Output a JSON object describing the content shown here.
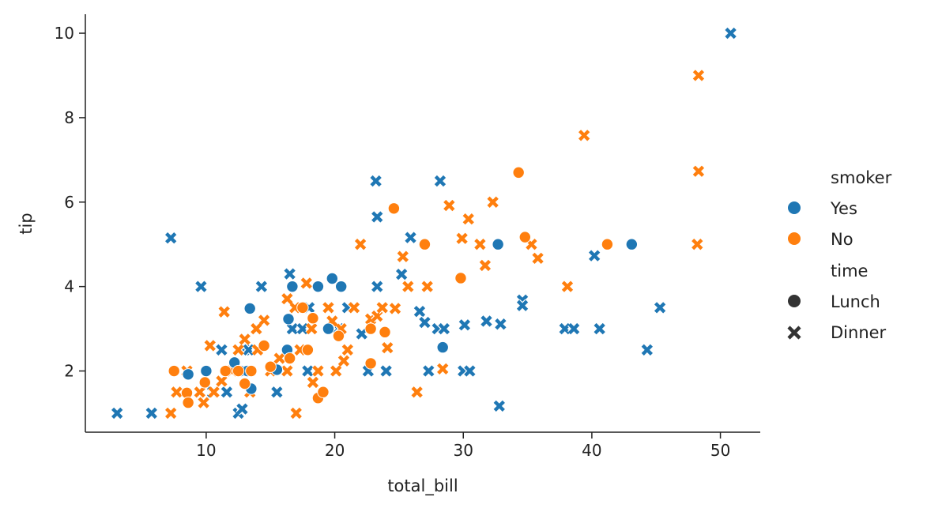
{
  "chart_data": {
    "type": "scatter",
    "title": "",
    "xlabel": "total_bill",
    "ylabel": "tip",
    "xlim": [
      0.6,
      53.1
    ],
    "ylim": [
      0.55,
      10.45
    ],
    "xticks": [
      10,
      20,
      30,
      40,
      50
    ],
    "yticks": [
      2,
      4,
      6,
      8,
      10
    ],
    "grid": false,
    "legend": {
      "placement": "right",
      "hue_title": "smoker",
      "hue_entries": [
        {
          "label": "Yes",
          "color": "#1f77b4"
        },
        {
          "label": "No",
          "color": "#ff7f0e"
        }
      ],
      "style_title": "time",
      "style_entries": [
        {
          "label": "Lunch",
          "marker": "circle"
        },
        {
          "label": "Dinner",
          "marker": "x"
        }
      ]
    },
    "series": [
      {
        "smoker": "Yes",
        "time": "Dinner",
        "color": "#1f77b4",
        "marker": "x",
        "x": [
          3.07,
          5.75,
          7.25,
          9.6,
          10.5,
          11.2,
          11.6,
          12.5,
          12.8,
          13.0,
          13.3,
          14.3,
          15.5,
          16.7,
          17.5,
          17.9,
          18.0,
          20.3,
          21.0,
          22.1,
          22.6,
          23.2,
          23.3,
          24.0,
          25.2,
          25.9,
          26.6,
          27.0,
          27.3,
          28.0,
          28.2,
          28.5,
          30.0,
          30.1,
          30.5,
          31.8,
          32.8,
          32.9,
          34.6,
          34.6,
          37.9,
          38.6,
          40.2,
          40.6,
          44.3,
          45.3,
          50.8,
          23.3,
          16.5
        ],
        "y": [
          1.0,
          1.0,
          5.15,
          4.0,
          1.5,
          2.5,
          1.5,
          1.0,
          1.1,
          2.5,
          2.5,
          4.0,
          1.5,
          3.0,
          3.0,
          2.0,
          3.5,
          3.0,
          3.5,
          2.88,
          2.0,
          6.5,
          4.0,
          2.0,
          4.29,
          5.16,
          3.41,
          3.15,
          2.0,
          3.0,
          6.5,
          3.0,
          2.0,
          3.09,
          2.0,
          3.18,
          1.17,
          3.11,
          3.68,
          3.55,
          3.0,
          3.0,
          4.73,
          3.0,
          2.5,
          3.5,
          10.0,
          5.65,
          4.3
        ]
      },
      {
        "smoker": "No",
        "time": "Dinner",
        "color": "#ff7f0e",
        "marker": "x",
        "x": [
          7.25,
          7.7,
          8.5,
          9.5,
          9.8,
          10.3,
          10.6,
          11.4,
          12.0,
          12.5,
          13.0,
          13.4,
          14.0,
          14.5,
          15.0,
          15.7,
          16.3,
          16.9,
          17.3,
          17.8,
          18.2,
          18.7,
          19.5,
          20.1,
          20.5,
          21.0,
          21.5,
          22.0,
          22.8,
          23.3,
          23.7,
          24.1,
          24.7,
          25.3,
          25.7,
          26.4,
          27.2,
          28.4,
          28.9,
          29.9,
          30.4,
          31.3,
          31.7,
          32.3,
          35.3,
          35.8,
          38.1,
          39.4,
          48.2,
          48.3,
          48.3,
          17.0,
          20.7,
          16.3,
          18.3,
          19.8,
          13.9,
          11.2
        ],
        "y": [
          1.0,
          1.5,
          2.0,
          1.5,
          1.25,
          2.6,
          1.5,
          3.4,
          2.0,
          2.5,
          2.75,
          1.5,
          2.5,
          3.2,
          2.0,
          2.3,
          2.0,
          3.5,
          2.5,
          4.08,
          3.0,
          2.0,
          3.5,
          2.0,
          3.0,
          2.5,
          3.5,
          5.0,
          3.23,
          3.3,
          3.5,
          2.55,
          3.48,
          4.71,
          4.0,
          1.5,
          4.0,
          2.05,
          5.92,
          5.14,
          5.6,
          5.0,
          4.5,
          6.0,
          5.0,
          4.67,
          4.0,
          7.58,
          5.0,
          6.73,
          9.0,
          1.0,
          2.24,
          3.71,
          1.73,
          3.18,
          3.0,
          1.76
        ]
      },
      {
        "smoker": "Yes",
        "time": "Lunch",
        "color": "#1f77b4",
        "marker": "circle",
        "x": [
          8.6,
          10.0,
          12.2,
          12.7,
          13.2,
          13.4,
          13.5,
          15.5,
          16.3,
          16.4,
          16.7,
          18.7,
          19.5,
          19.8,
          20.5,
          28.4,
          32.7,
          43.1
        ],
        "y": [
          1.92,
          2.0,
          2.2,
          2.0,
          2.0,
          3.48,
          1.58,
          2.03,
          2.5,
          3.23,
          4.0,
          4.0,
          3.0,
          4.19,
          4.0,
          2.56,
          5.0,
          5.0
        ]
      },
      {
        "smoker": "No",
        "time": "Lunch",
        "color": "#ff7f0e",
        "marker": "circle",
        "x": [
          7.5,
          8.5,
          8.6,
          9.9,
          11.5,
          12.5,
          13.0,
          13.5,
          14.5,
          15.0,
          16.5,
          17.5,
          17.9,
          18.3,
          18.7,
          19.1,
          20.3,
          22.8,
          22.8,
          23.9,
          24.6,
          27.0,
          29.8,
          34.3,
          34.8,
          41.2
        ],
        "y": [
          2.0,
          1.48,
          1.25,
          1.73,
          2.0,
          2.0,
          1.7,
          2.0,
          2.6,
          2.1,
          2.3,
          3.5,
          2.5,
          3.25,
          1.36,
          1.5,
          2.83,
          3.0,
          2.18,
          2.92,
          5.85,
          5.0,
          4.2,
          6.7,
          5.17,
          5.0
        ]
      }
    ]
  }
}
